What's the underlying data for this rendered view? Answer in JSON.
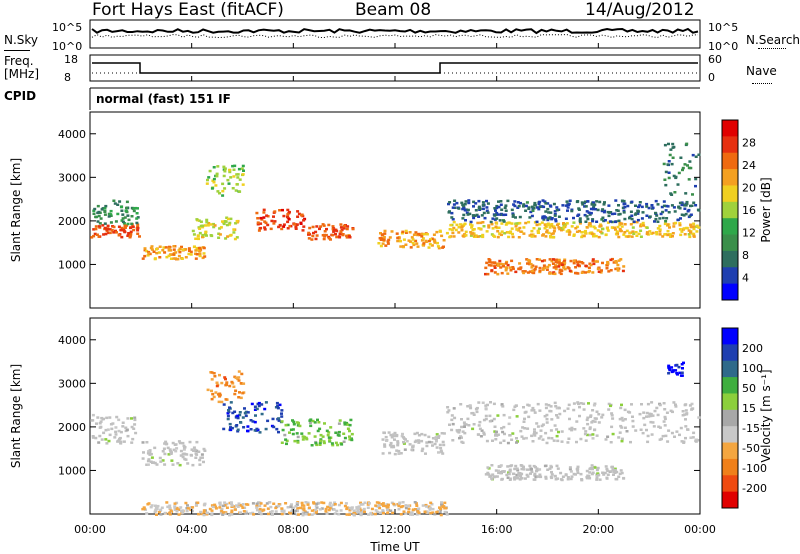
{
  "header": {
    "station": "Fort Hays East (fitACF)",
    "beam": "Beam 08",
    "date": "14/Aug/2012"
  },
  "panels_top": {
    "nsky_label": "N.Sky",
    "nsky_ticks": [
      "10^5",
      "10^0"
    ],
    "nsearch_label": "N.Search",
    "nsearch_ticks": [
      "10^5",
      "10^0"
    ],
    "freq_label": "Freq.",
    "freq_unit": "[MHz]",
    "freq_ticks": [
      "18",
      "8"
    ],
    "nave_label": "Nave",
    "nave_ticks": [
      "60",
      "0"
    ],
    "cpid_label": "CPID",
    "cpid_value": "normal (fast) 151 IF"
  },
  "colors": {
    "power_scale": [
      "#0000ff",
      "#1f3fb0",
      "#2e6e5e",
      "#3a8f4a",
      "#2fa84a",
      "#a0d23c",
      "#f0d020",
      "#f4a020",
      "#ef6a10",
      "#e63010",
      "#e00000"
    ],
    "velocity_scale": [
      "#e00000",
      "#ef4a10",
      "#f0801a",
      "#f4a640",
      "#c8c8c8",
      "#a8a8a8",
      "#8ccf3c",
      "#3fae3f",
      "#2f6a8a",
      "#1f3fb0",
      "#0000ff"
    ],
    "ground_scatter": "#c0c0c0"
  },
  "chart_data": [
    {
      "type": "heatmap",
      "name": "power",
      "ylabel": "Slant Range [km]",
      "yticks": [
        "4000",
        "3000",
        "2000",
        "1000"
      ],
      "ylim": [
        0,
        4500
      ],
      "xlim": [
        "00:00",
        "24:00"
      ],
      "colorbar_label": "Power [dB]",
      "colorbar_ticks": [
        "28",
        "24",
        "20",
        "16",
        "12",
        "8",
        "4"
      ],
      "colorbar_range": [
        0,
        32
      ],
      "bands": [
        {
          "t0": 0.0,
          "t1": 1.9,
          "r0": 1650,
          "r1": 1950,
          "value": 26
        },
        {
          "t0": 0.0,
          "t1": 1.9,
          "r0": 1950,
          "r1": 2500,
          "value": 10
        },
        {
          "t0": 2.0,
          "t1": 4.5,
          "r0": 1150,
          "r1": 1450,
          "value": 22
        },
        {
          "t0": 4.0,
          "t1": 5.8,
          "r0": 1600,
          "r1": 2100,
          "value": 18
        },
        {
          "t0": 4.5,
          "t1": 6.0,
          "r0": 2600,
          "r1": 3300,
          "value": 16
        },
        {
          "t0": 6.5,
          "t1": 8.5,
          "r0": 1800,
          "r1": 2300,
          "value": 27
        },
        {
          "t0": 8.5,
          "t1": 10.3,
          "r0": 1600,
          "r1": 1950,
          "value": 26
        },
        {
          "t0": 11.3,
          "t1": 13.9,
          "r0": 1400,
          "r1": 1800,
          "value": 22
        },
        {
          "t0": 14.0,
          "t1": 23.9,
          "r0": 1650,
          "r1": 2000,
          "value": 20
        },
        {
          "t0": 15.5,
          "t1": 21.0,
          "r0": 800,
          "r1": 1150,
          "value": 24
        },
        {
          "t0": 14.0,
          "t1": 23.9,
          "r0": 2000,
          "r1": 2500,
          "value": 6
        },
        {
          "t0": 22.5,
          "t1": 23.9,
          "r0": 2600,
          "r1": 3800,
          "value": 8
        }
      ]
    },
    {
      "type": "heatmap",
      "name": "velocity",
      "ylabel": "Slant Range [km]",
      "yticks": [
        "4000",
        "3000",
        "2000",
        "1000"
      ],
      "ylim": [
        0,
        4500
      ],
      "xlabel": "Time UT",
      "xticks": [
        "00:00",
        "04:00",
        "08:00",
        "12:00",
        "16:00",
        "20:00",
        "00:00"
      ],
      "colorbar_label": "Velocity [m s⁻¹]",
      "colorbar_ticks": [
        "200",
        "100",
        "50",
        "15",
        "-15",
        "-50",
        "-100",
        "-200"
      ],
      "colorbar_range": [
        -250,
        250
      ],
      "bands": [
        {
          "t0": 0.0,
          "t1": 1.9,
          "r0": 1650,
          "r1": 2300,
          "value": 0,
          "ground": true
        },
        {
          "t0": 2.0,
          "t1": 4.5,
          "r0": 1150,
          "r1": 1700,
          "value": 0,
          "ground": true
        },
        {
          "t0": 4.5,
          "t1": 6.0,
          "r0": 2600,
          "r1": 3300,
          "value": -120
        },
        {
          "t0": 5.2,
          "t1": 7.5,
          "r0": 1900,
          "r1": 2600,
          "value": 180
        },
        {
          "t0": 7.5,
          "t1": 10.3,
          "r0": 1600,
          "r1": 2200,
          "value": 60
        },
        {
          "t0": 11.3,
          "t1": 13.9,
          "r0": 1400,
          "r1": 1900,
          "value": 0,
          "ground": true
        },
        {
          "t0": 14.0,
          "t1": 23.9,
          "r0": 1650,
          "r1": 2600,
          "value": 0,
          "ground": true
        },
        {
          "t0": 15.5,
          "t1": 21.0,
          "r0": 800,
          "r1": 1150,
          "value": 0,
          "ground": true
        },
        {
          "t0": 22.7,
          "t1": 23.3,
          "r0": 3200,
          "r1": 3500,
          "value": 220
        },
        {
          "t0": 2.0,
          "t1": 14.0,
          "r0": 0,
          "r1": 300,
          "value": -60
        }
      ]
    }
  ]
}
